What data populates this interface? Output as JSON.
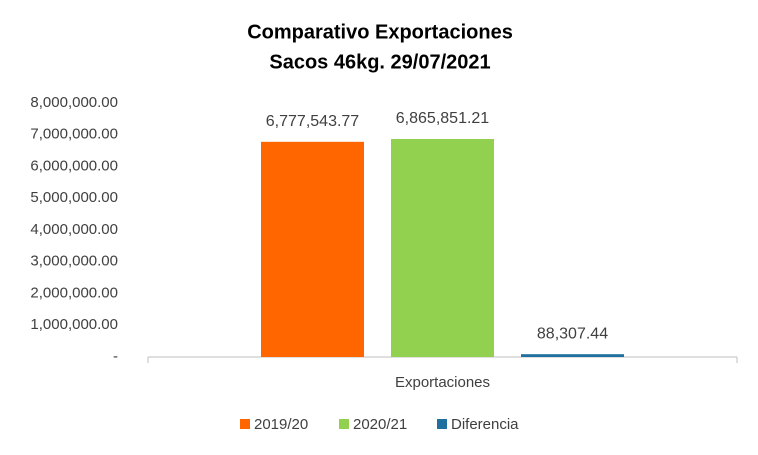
{
  "chart_data": {
    "type": "bar",
    "title": "Comparativo  Exportaciones",
    "subtitle": "Sacos 46kg. 29/07/2021",
    "categories": [
      "Exportaciones"
    ],
    "series": [
      {
        "name": "2019/20",
        "color": "#ff6600",
        "values": [
          6777543.77
        ],
        "value_labels": [
          "6,777,543.77"
        ]
      },
      {
        "name": "2020/21",
        "color": "#92d050",
        "values": [
          6865851.21
        ],
        "value_labels": [
          "6,865,851.21"
        ]
      },
      {
        "name": "Diferencia",
        "color": "#1f6f9f",
        "values": [
          88307.44
        ],
        "value_labels": [
          "88,307.44"
        ]
      }
    ],
    "ylim": [
      0,
      8000000
    ],
    "yticks": [
      {
        "value": 0,
        "label": "-"
      },
      {
        "value": 1000000,
        "label": "1,000,000.00"
      },
      {
        "value": 2000000,
        "label": "2,000,000.00"
      },
      {
        "value": 3000000,
        "label": "3,000,000.00"
      },
      {
        "value": 4000000,
        "label": "4,000,000.00"
      },
      {
        "value": 5000000,
        "label": "5,000,000.00"
      },
      {
        "value": 6000000,
        "label": "6,000,000.00"
      },
      {
        "value": 7000000,
        "label": "7,000,000.00"
      },
      {
        "value": 8000000,
        "label": "8,000,000.00"
      }
    ],
    "grid": false,
    "legend": "bottom"
  }
}
